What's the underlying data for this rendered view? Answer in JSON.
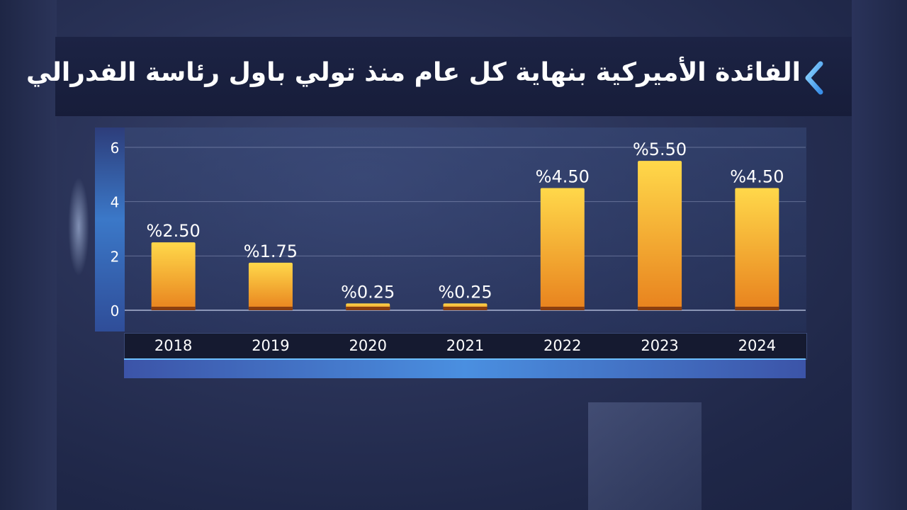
{
  "title": "الفائدة الأميركية بنهاية كل عام منذ تولي باول رئاسة الفدرالي",
  "colors": {
    "bar_top": "#ffd84a",
    "bar_bottom": "#e8821e",
    "bar_base": "#8a3e10",
    "label": "#ffffff",
    "accent": "#5fb8ff"
  },
  "chart_data": {
    "type": "bar",
    "title": "الفائدة الأميركية بنهاية كل عام منذ تولي باول رئاسة الفدرالي",
    "categories": [
      "2018",
      "2019",
      "2020",
      "2021",
      "2022",
      "2023",
      "2024"
    ],
    "values": [
      2.5,
      1.75,
      0.25,
      0.25,
      4.5,
      5.5,
      4.5
    ],
    "data_labels": [
      "%2.50",
      "%1.75",
      "%0.25",
      "%0.25",
      "%4.50",
      "%5.50",
      "%4.50"
    ],
    "y_ticks": [
      "0",
      "2",
      "4",
      "6"
    ],
    "ylim": [
      0,
      6
    ],
    "grid": true,
    "xlabel": "",
    "ylabel": ""
  }
}
